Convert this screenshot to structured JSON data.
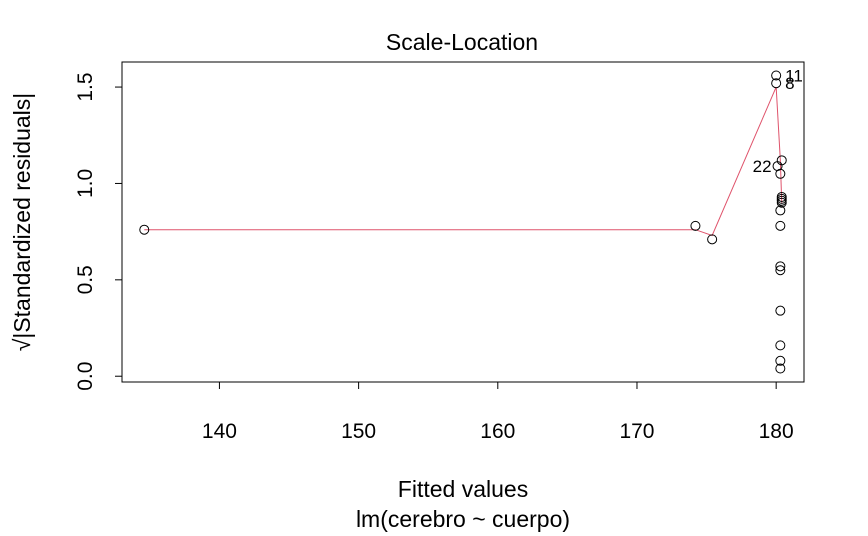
{
  "chart_data": {
    "type": "scatter",
    "title": "Scale-Location",
    "xlabel": "Fitted values",
    "xlabel_sub": "lm(cerebro ~ cuerpo)",
    "ylabel": "√|Standardized residuals|",
    "xlim": [
      133.0,
      182.0
    ],
    "ylim": [
      -0.03,
      1.63
    ],
    "x_ticks": [
      140,
      150,
      160,
      170,
      180
    ],
    "x_tick_labels": [
      "140",
      "150",
      "160",
      "170",
      "180"
    ],
    "y_ticks": [
      0.0,
      0.5,
      1.0,
      1.5
    ],
    "y_tick_labels": [
      "0.0",
      "0.5",
      "1.0",
      "1.5"
    ],
    "grid": false,
    "points": [
      {
        "x": 134.6,
        "y": 0.76
      },
      {
        "x": 174.2,
        "y": 0.78
      },
      {
        "x": 175.4,
        "y": 0.71
      },
      {
        "x": 180.0,
        "y": 1.56,
        "label": "11"
      },
      {
        "x": 180.0,
        "y": 1.52,
        "label": "8"
      },
      {
        "x": 180.1,
        "y": 1.09,
        "label": "22"
      },
      {
        "x": 180.4,
        "y": 1.12
      },
      {
        "x": 180.3,
        "y": 1.05
      },
      {
        "x": 180.4,
        "y": 0.93
      },
      {
        "x": 180.4,
        "y": 0.92
      },
      {
        "x": 180.4,
        "y": 0.91
      },
      {
        "x": 180.4,
        "y": 0.9
      },
      {
        "x": 180.3,
        "y": 0.86
      },
      {
        "x": 180.3,
        "y": 0.78
      },
      {
        "x": 180.3,
        "y": 0.57
      },
      {
        "x": 180.3,
        "y": 0.55
      },
      {
        "x": 180.3,
        "y": 0.34
      },
      {
        "x": 180.3,
        "y": 0.16
      },
      {
        "x": 180.3,
        "y": 0.08
      },
      {
        "x": 180.3,
        "y": 0.04
      }
    ],
    "smoother": {
      "color": "#DF536B",
      "x": [
        134.6,
        174.2,
        175.4,
        180.0,
        180.3,
        180.4
      ],
      "y": [
        0.76,
        0.76,
        0.73,
        1.5,
        1.12,
        0.9
      ]
    }
  }
}
